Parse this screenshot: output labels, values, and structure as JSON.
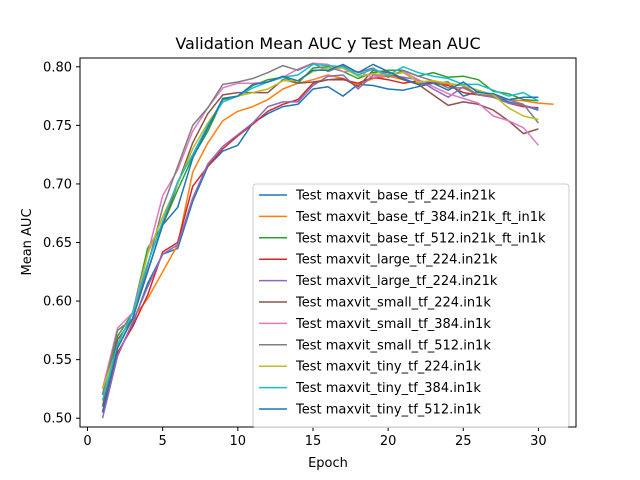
{
  "chart_data": {
    "type": "line",
    "title": "Validation Mean AUC y Test Mean AUC",
    "xlabel": "Epoch",
    "ylabel": "Mean AUC",
    "xlim": [
      -0.5,
      32.5
    ],
    "ylim": [
      0.4925,
      0.8075
    ],
    "xticks": [
      0,
      5,
      10,
      15,
      20,
      25,
      30
    ],
    "yticks": [
      0.5,
      0.55,
      0.6,
      0.65,
      0.7,
      0.75,
      0.8
    ],
    "ytick_labels": [
      "0.50",
      "0.55",
      "0.60",
      "0.65",
      "0.70",
      "0.75",
      "0.80"
    ],
    "grid": false,
    "legend_position": "lower right",
    "series": [
      {
        "name": "Test maxvit_base_tf_224.in21k",
        "color": "#1f77b4",
        "x": [
          1,
          2,
          3,
          4,
          5,
          6,
          7,
          8,
          9,
          10,
          11,
          12,
          13,
          14,
          15,
          16,
          17,
          18,
          19,
          20,
          21,
          22,
          23,
          24,
          25,
          26,
          27,
          28,
          29,
          30
        ],
        "y": [
          0.505,
          0.555,
          0.58,
          0.615,
          0.64,
          0.645,
          0.685,
          0.715,
          0.728,
          0.733,
          0.752,
          0.76,
          0.766,
          0.768,
          0.781,
          0.783,
          0.775,
          0.785,
          0.784,
          0.781,
          0.78,
          0.783,
          0.786,
          0.787,
          0.775,
          0.779,
          0.776,
          0.77,
          0.767,
          0.763
        ]
      },
      {
        "name": "Test maxvit_base_tf_384.in21k_ft_in1k",
        "color": "#ff7f0e",
        "x": [
          1,
          2,
          3,
          4,
          5,
          6,
          7,
          8,
          9,
          10,
          11,
          12,
          13,
          14,
          15,
          16,
          17,
          18,
          19,
          20,
          21,
          22,
          23,
          24,
          25,
          26,
          27,
          28,
          29,
          30,
          31
        ],
        "y": [
          0.51,
          0.56,
          0.585,
          0.602,
          0.625,
          0.648,
          0.71,
          0.735,
          0.754,
          0.762,
          0.766,
          0.772,
          0.781,
          0.786,
          0.789,
          0.793,
          0.79,
          0.785,
          0.79,
          0.792,
          0.789,
          0.786,
          0.787,
          0.785,
          0.784,
          0.776,
          0.776,
          0.772,
          0.771,
          0.769,
          0.768
        ]
      },
      {
        "name": "Test maxvit_base_tf_512.in21k_ft_in1k",
        "color": "#2ca02c",
        "x": [
          1,
          2,
          3,
          4,
          5,
          6,
          7,
          8,
          9,
          10,
          11,
          12,
          13,
          14,
          15,
          16,
          17,
          18,
          19,
          20,
          21,
          22,
          23,
          24,
          25,
          26,
          27,
          28,
          29,
          30
        ],
        "y": [
          0.52,
          0.57,
          0.59,
          0.645,
          0.665,
          0.695,
          0.723,
          0.745,
          0.772,
          0.775,
          0.784,
          0.789,
          0.791,
          0.786,
          0.799,
          0.8,
          0.796,
          0.79,
          0.795,
          0.797,
          0.797,
          0.792,
          0.795,
          0.791,
          0.792,
          0.789,
          0.779,
          0.777,
          0.772,
          0.771
        ]
      },
      {
        "name": "Test maxvit_large_tf_224.in21k",
        "color": "#d62728",
        "x": [
          1,
          2,
          3,
          4,
          5,
          6,
          7,
          8,
          9,
          10,
          11,
          12,
          13,
          14,
          15,
          16,
          17,
          18,
          19,
          20,
          21,
          22,
          23,
          24,
          25,
          26,
          27,
          28,
          29,
          30
        ],
        "y": [
          0.505,
          0.556,
          0.578,
          0.605,
          0.642,
          0.65,
          0.698,
          0.715,
          0.73,
          0.741,
          0.751,
          0.762,
          0.768,
          0.772,
          0.786,
          0.789,
          0.789,
          0.786,
          0.791,
          0.789,
          0.786,
          0.788,
          0.786,
          0.784,
          0.778,
          0.776,
          0.774,
          0.769,
          0.766,
          0.765
        ]
      },
      {
        "name": "Test maxvit_large_tf_224.in21k",
        "color": "#9467bd",
        "x": [
          1,
          2,
          3,
          4,
          5,
          6,
          7,
          8,
          9,
          10,
          11,
          12,
          13,
          14,
          15,
          16,
          17,
          18,
          19,
          20,
          21,
          22,
          23,
          24,
          25,
          26,
          27,
          28,
          29,
          30
        ],
        "y": [
          0.5,
          0.553,
          0.582,
          0.612,
          0.64,
          0.648,
          0.688,
          0.717,
          0.732,
          0.742,
          0.752,
          0.766,
          0.77,
          0.77,
          0.784,
          0.792,
          0.793,
          0.781,
          0.793,
          0.793,
          0.791,
          0.789,
          0.781,
          0.774,
          0.783,
          0.776,
          0.774,
          0.769,
          0.767,
          0.764
        ]
      },
      {
        "name": "Test maxvit_small_tf_224.in1k",
        "color": "#8c564b",
        "x": [
          1,
          2,
          3,
          4,
          5,
          6,
          7,
          8,
          9,
          10,
          11,
          12,
          13,
          14,
          15,
          16,
          17,
          18,
          19,
          20,
          21,
          22,
          23,
          24,
          25,
          26,
          27,
          28,
          29,
          30
        ],
        "y": [
          0.51,
          0.567,
          0.585,
          0.625,
          0.665,
          0.7,
          0.735,
          0.76,
          0.776,
          0.778,
          0.778,
          0.778,
          0.789,
          0.786,
          0.787,
          0.789,
          0.79,
          0.783,
          0.797,
          0.795,
          0.789,
          0.785,
          0.776,
          0.767,
          0.77,
          0.768,
          0.763,
          0.754,
          0.743,
          0.747
        ]
      },
      {
        "name": "Test maxvit_small_tf_384.in1k",
        "color": "#e377c2",
        "x": [
          1,
          2,
          3,
          4,
          5,
          6,
          7,
          8,
          9,
          10,
          11,
          12,
          13,
          14,
          15,
          16,
          17,
          18,
          19,
          20,
          21,
          22,
          23,
          24,
          25,
          26,
          27,
          28,
          29,
          30
        ],
        "y": [
          0.525,
          0.577,
          0.59,
          0.64,
          0.69,
          0.712,
          0.745,
          0.765,
          0.782,
          0.786,
          0.786,
          0.787,
          0.791,
          0.798,
          0.803,
          0.802,
          0.796,
          0.796,
          0.791,
          0.793,
          0.796,
          0.789,
          0.783,
          0.777,
          0.773,
          0.769,
          0.758,
          0.754,
          0.748,
          0.733
        ]
      },
      {
        "name": "Test maxvit_small_tf_512.in1k",
        "color": "#7f7f7f",
        "x": [
          1,
          2,
          3,
          4,
          5,
          6,
          7,
          8,
          9,
          10,
          11,
          12,
          13,
          14,
          15,
          16,
          17,
          18,
          19,
          20,
          21,
          22,
          23,
          24,
          25,
          26,
          27,
          28,
          29,
          30
        ],
        "y": [
          0.52,
          0.575,
          0.585,
          0.63,
          0.68,
          0.715,
          0.75,
          0.765,
          0.785,
          0.787,
          0.79,
          0.795,
          0.801,
          0.797,
          0.803,
          0.796,
          0.801,
          0.795,
          0.799,
          0.791,
          0.797,
          0.792,
          0.788,
          0.782,
          0.782,
          0.776,
          0.775,
          0.772,
          0.768,
          0.752
        ]
      },
      {
        "name": "Test maxvit_tiny_tf_224.in1k",
        "color": "#bcbd22",
        "x": [
          1,
          2,
          3,
          4,
          5,
          6,
          7,
          8,
          9,
          10,
          11,
          12,
          13,
          14,
          15,
          16,
          17,
          18,
          19,
          20,
          21,
          22,
          23,
          24,
          25,
          26,
          27,
          28,
          29,
          30
        ],
        "y": [
          0.525,
          0.56,
          0.585,
          0.64,
          0.672,
          0.7,
          0.73,
          0.752,
          0.77,
          0.775,
          0.778,
          0.781,
          0.788,
          0.788,
          0.796,
          0.799,
          0.799,
          0.792,
          0.794,
          0.793,
          0.795,
          0.787,
          0.788,
          0.786,
          0.784,
          0.78,
          0.776,
          0.765,
          0.758,
          0.755
        ]
      },
      {
        "name": "Test maxvit_tiny_tf_384.in1k",
        "color": "#17becf",
        "x": [
          1,
          2,
          3,
          4,
          5,
          6,
          7,
          8,
          9,
          10,
          11,
          12,
          13,
          14,
          15,
          16,
          17,
          18,
          19,
          20,
          21,
          22,
          23,
          24,
          25,
          26,
          27,
          28,
          29,
          30
        ],
        "y": [
          0.515,
          0.563,
          0.59,
          0.632,
          0.668,
          0.702,
          0.725,
          0.75,
          0.77,
          0.775,
          0.782,
          0.787,
          0.791,
          0.793,
          0.802,
          0.801,
          0.8,
          0.793,
          0.798,
          0.793,
          0.8,
          0.795,
          0.792,
          0.79,
          0.785,
          0.785,
          0.78,
          0.775,
          0.778,
          0.771
        ]
      },
      {
        "name": "Test maxvit_tiny_tf_512.in1k",
        "color": "#1f77b4",
        "x": [
          1,
          2,
          3,
          4,
          5,
          6,
          7,
          8,
          9,
          10,
          11,
          12,
          13,
          14,
          15,
          16,
          17,
          18,
          19,
          20,
          21,
          22,
          23,
          24,
          25,
          26,
          27,
          28,
          29,
          30
        ],
        "y": [
          0.505,
          0.56,
          0.585,
          0.625,
          0.665,
          0.68,
          0.722,
          0.748,
          0.773,
          0.775,
          0.785,
          0.787,
          0.792,
          0.788,
          0.797,
          0.797,
          0.802,
          0.795,
          0.802,
          0.796,
          0.79,
          0.785,
          0.786,
          0.78,
          0.787,
          0.778,
          0.777,
          0.772,
          0.774,
          0.774
        ]
      }
    ]
  }
}
